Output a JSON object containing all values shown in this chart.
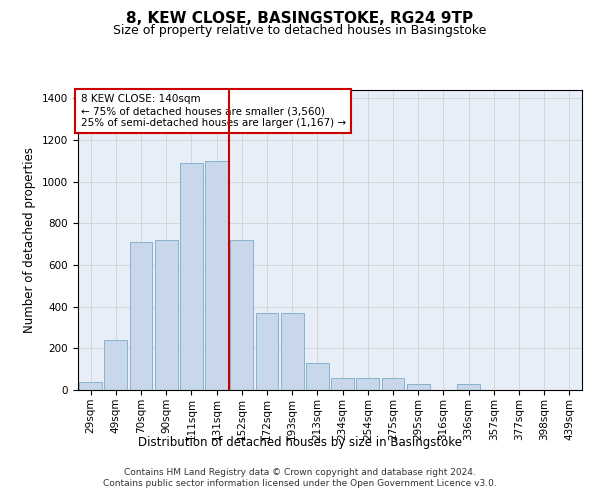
{
  "title": "8, KEW CLOSE, BASINGSTOKE, RG24 9TP",
  "subtitle": "Size of property relative to detached houses in Basingstoke",
  "xlabel": "Distribution of detached houses by size in Basingstoke",
  "ylabel": "Number of detached properties",
  "footer_line1": "Contains HM Land Registry data © Crown copyright and database right 2024.",
  "footer_line2": "Contains public sector information licensed under the Open Government Licence v3.0.",
  "annotation_line1": "8 KEW CLOSE: 140sqm",
  "annotation_line2": "← 75% of detached houses are smaller (3,560)",
  "annotation_line3": "25% of semi-detached houses are larger (1,167) →",
  "bar_color": "#c8d8ea",
  "bar_edge_color": "#7aaac8",
  "vline_color": "#cc0000",
  "vline_x": 5.5,
  "categories": [
    "29sqm",
    "49sqm",
    "70sqm",
    "90sqm",
    "111sqm",
    "131sqm",
    "152sqm",
    "172sqm",
    "193sqm",
    "213sqm",
    "234sqm",
    "254sqm",
    "275sqm",
    "295sqm",
    "316sqm",
    "336sqm",
    "357sqm",
    "377sqm",
    "398sqm",
    "439sqm"
  ],
  "values": [
    38,
    240,
    710,
    720,
    1090,
    1100,
    720,
    370,
    370,
    130,
    60,
    60,
    60,
    28,
    0,
    28,
    0,
    0,
    0,
    0
  ],
  "ylim": [
    0,
    1440
  ],
  "yticks": [
    0,
    200,
    400,
    600,
    800,
    1000,
    1200,
    1400
  ],
  "grid_color": "#cccccc",
  "background_color": "#e8eef8",
  "title_fontsize": 11,
  "subtitle_fontsize": 9,
  "tick_fontsize": 7.5,
  "footer_fontsize": 6.5
}
